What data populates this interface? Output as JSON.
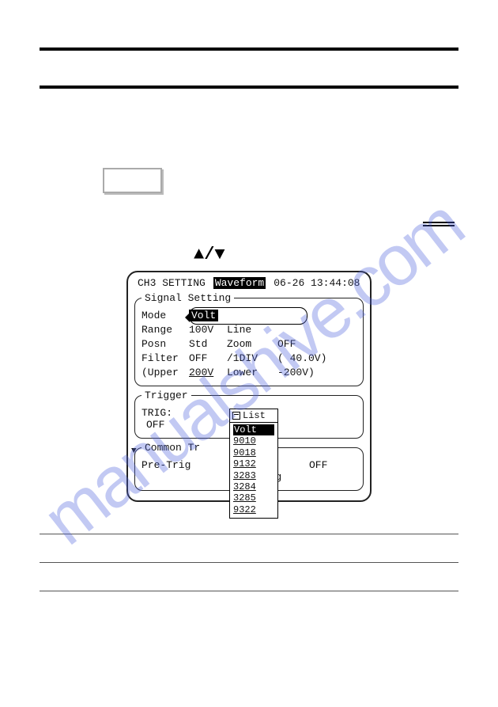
{
  "watermark": "manualshive.com",
  "arrows": "▲/▼",
  "panel": {
    "title": "CH3 SETTING",
    "mode_header": "Waveform",
    "timestamp": "06-26 13:44:08"
  },
  "signal": {
    "legend": "Signal Setting",
    "mode_label": "Mode",
    "mode_value": "Volt",
    "range_label": "Range",
    "range_value": "100V",
    "line_label": "Line",
    "posn_label": "Posn",
    "posn_value": "Std",
    "zoom_label": "Zoom",
    "zoom_value": "OFF",
    "filter_label": "Filter",
    "filter_value": "OFF",
    "div_label": "/1DIV",
    "div_value": "( 40.0V)",
    "upper_label": "(Upper",
    "upper_value": "200V",
    "lower_label": "Lower",
    "lower_value": "-200V)"
  },
  "trigger": {
    "legend": "Trigger",
    "trig_label": "TRIG:",
    "trig_value": "OFF"
  },
  "common": {
    "legend_left": "Common Tr",
    "legend_right": "ting",
    "pretrig_label": "Pre-Trig",
    "ext_label": "Ext Trig",
    "ext_value": "OFF"
  },
  "list": {
    "header": "List",
    "items": [
      "Volt",
      "9010",
      "9018",
      "9132",
      "3283",
      "3284",
      "3285",
      "9322"
    ],
    "selected_index": 0
  }
}
